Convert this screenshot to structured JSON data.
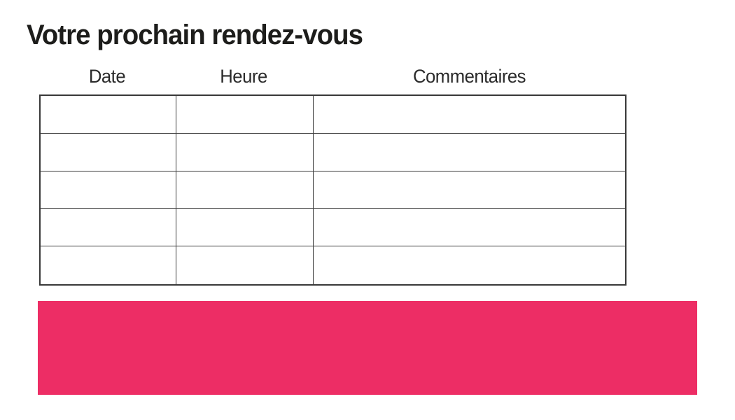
{
  "page": {
    "title": "Votre prochain rendez-vous"
  },
  "table": {
    "columns": [
      "Date",
      "Heure",
      "Commentaires"
    ],
    "rows": [
      [
        "",
        "",
        ""
      ],
      [
        "",
        "",
        ""
      ],
      [
        "",
        "",
        ""
      ],
      [
        "",
        "",
        ""
      ],
      [
        "",
        "",
        ""
      ]
    ]
  },
  "colors": {
    "accent_pink": "#ED2D65",
    "text": "#1D1D1B",
    "table_border": "#3E3E3E",
    "background": "#FFFFFF"
  }
}
